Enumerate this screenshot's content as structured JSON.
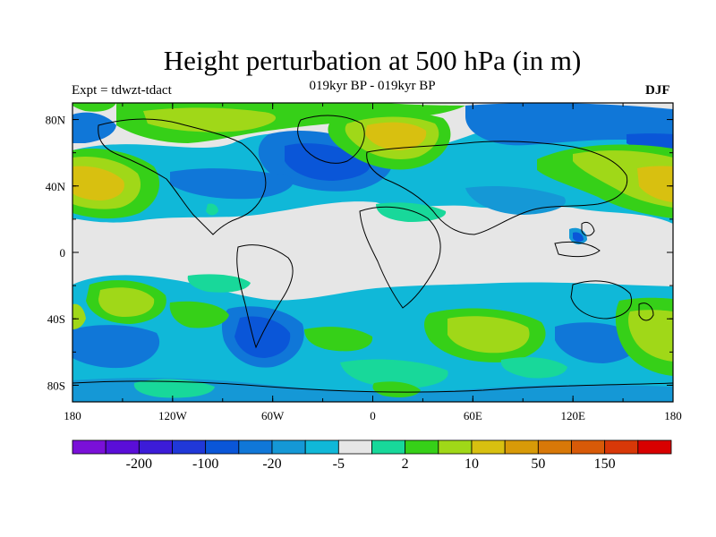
{
  "figure": {
    "title": "Height perturbation at 500 hPa (in m)",
    "subtitle": "019kyr BP - 019kyr BP",
    "left_label": "Expt = tdwzt-tdact",
    "right_label": "DJF"
  },
  "axes": {
    "x_ticks": [
      "180",
      "120W",
      "60W",
      "0",
      "60E",
      "120E",
      "180"
    ],
    "y_ticks": [
      "80N",
      "40N",
      "0",
      "40S",
      "80S"
    ],
    "lon_range": [
      -180,
      180
    ],
    "lat_range": [
      -90,
      90
    ],
    "projection": "cylindrical equidistant"
  },
  "colorbar": {
    "colors": [
      "#7a10d8",
      "#5a0ed8",
      "#3c1cd8",
      "#2038d8",
      "#0a56d8",
      "#1077d8",
      "#1598d6",
      "#10b8d8",
      "#e6e6e6",
      "#18d89a",
      "#36d018",
      "#a0d818",
      "#d8c010",
      "#d89a08",
      "#d87808",
      "#d85a08",
      "#d83808",
      "#d80000"
    ],
    "labels": [
      "-200",
      "-100",
      "-20",
      "-5",
      "2",
      "10",
      "50",
      "150"
    ]
  },
  "regions": [
    {
      "name": "n-atlantic-neg-core",
      "color": "#0a56d8",
      "type": "negative"
    },
    {
      "name": "arctic-pos",
      "color": "#a0d818",
      "type": "positive"
    },
    {
      "name": "n-pacific-pos-core",
      "color": "#d8c010",
      "type": "positive"
    },
    {
      "name": "nw-pacific-pos-core",
      "color": "#d8c010",
      "type": "positive"
    },
    {
      "name": "s-indian-pos",
      "color": "#a0d818",
      "type": "positive"
    },
    {
      "name": "s-america-neg",
      "color": "#0a56d8",
      "type": "negative"
    }
  ]
}
